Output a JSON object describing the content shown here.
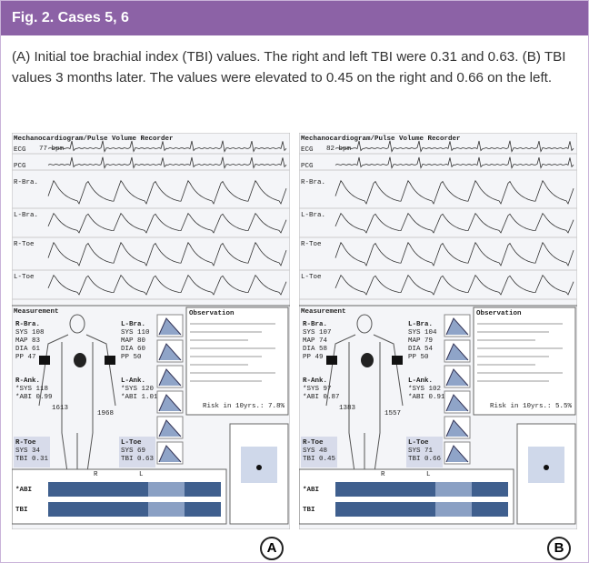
{
  "header": {
    "title": "Fig. 2.  Cases 5, 6"
  },
  "caption": "(A) Initial toe brachial index (TBI) values. The right and left TBI were 0.31 and 0.63. (B) TBI values 3 months later. The values were elevated to 0.45 on the right and 0.66 on the left.",
  "panels": [
    {
      "label": "A",
      "title": "Mechanocardiogram/Pulse Volume Recorder",
      "ecg": "77 bpm",
      "traces": [
        "ECG",
        "PCG",
        "R-Bra.",
        "L-Bra.",
        "R-Toe",
        "L-Toe"
      ],
      "measurement": "Measurement",
      "blocks": [
        {
          "title": "R-Bra.",
          "rows": [
            "SYS 108",
            "MAP 83",
            "DIA 61",
            "PP 47"
          ]
        },
        {
          "title": "L-Bra.",
          "rows": [
            "SYS 110",
            "MAP 80",
            "DIA 60",
            "PP 50"
          ]
        },
        {
          "title": "R-Ank.",
          "rows": [
            "*SYS 118",
            "*ABI 0.99"
          ]
        },
        {
          "title": "L-Ank.",
          "rows": [
            "*SYS 120",
            "*ABI 1.01"
          ]
        },
        {
          "title": "R-Toe",
          "rows": [
            "SYS 34",
            "TBI 0.31"
          ]
        },
        {
          "title": "L-Toe",
          "rows": [
            "SYS 69",
            "TBI 0.63"
          ]
        }
      ],
      "pwv": [
        "1613",
        "1968"
      ],
      "observation": "Observation",
      "risk": "Risk in 10yrs.: 7.8%",
      "bars": [
        "*ABI",
        "TBI"
      ],
      "sides": [
        "R",
        "L"
      ]
    },
    {
      "label": "B",
      "title": "Mechanocardiogram/Pulse Volume Recorder",
      "ecg": "82 bpm",
      "traces": [
        "ECG",
        "PCG",
        "R-Bra.",
        "L-Bra.",
        "R-Toe",
        "L-Toe"
      ],
      "measurement": "Measurement",
      "blocks": [
        {
          "title": "R-Bra.",
          "rows": [
            "SYS 107",
            "MAP 74",
            "DIA 58",
            "PP 49"
          ]
        },
        {
          "title": "L-Bra.",
          "rows": [
            "SYS 104",
            "MAP 79",
            "DIA 54",
            "PP 50"
          ]
        },
        {
          "title": "R-Ank.",
          "rows": [
            "*SYS 97",
            "*ABI 0.87"
          ]
        },
        {
          "title": "L-Ank.",
          "rows": [
            "*SYS 102",
            "*ABI 0.91"
          ]
        },
        {
          "title": "R-Toe",
          "rows": [
            "SYS 48",
            "TBI 0.45"
          ]
        },
        {
          "title": "L-Toe",
          "rows": [
            "SYS 71",
            "TBI 0.66"
          ]
        }
      ],
      "pwv": [
        "1383",
        "1557"
      ],
      "observation": "Observation",
      "risk": "Risk in 10yrs.: 5.5%",
      "bars": [
        "*ABI",
        "TBI"
      ],
      "sides": [
        "R",
        "L"
      ]
    }
  ]
}
